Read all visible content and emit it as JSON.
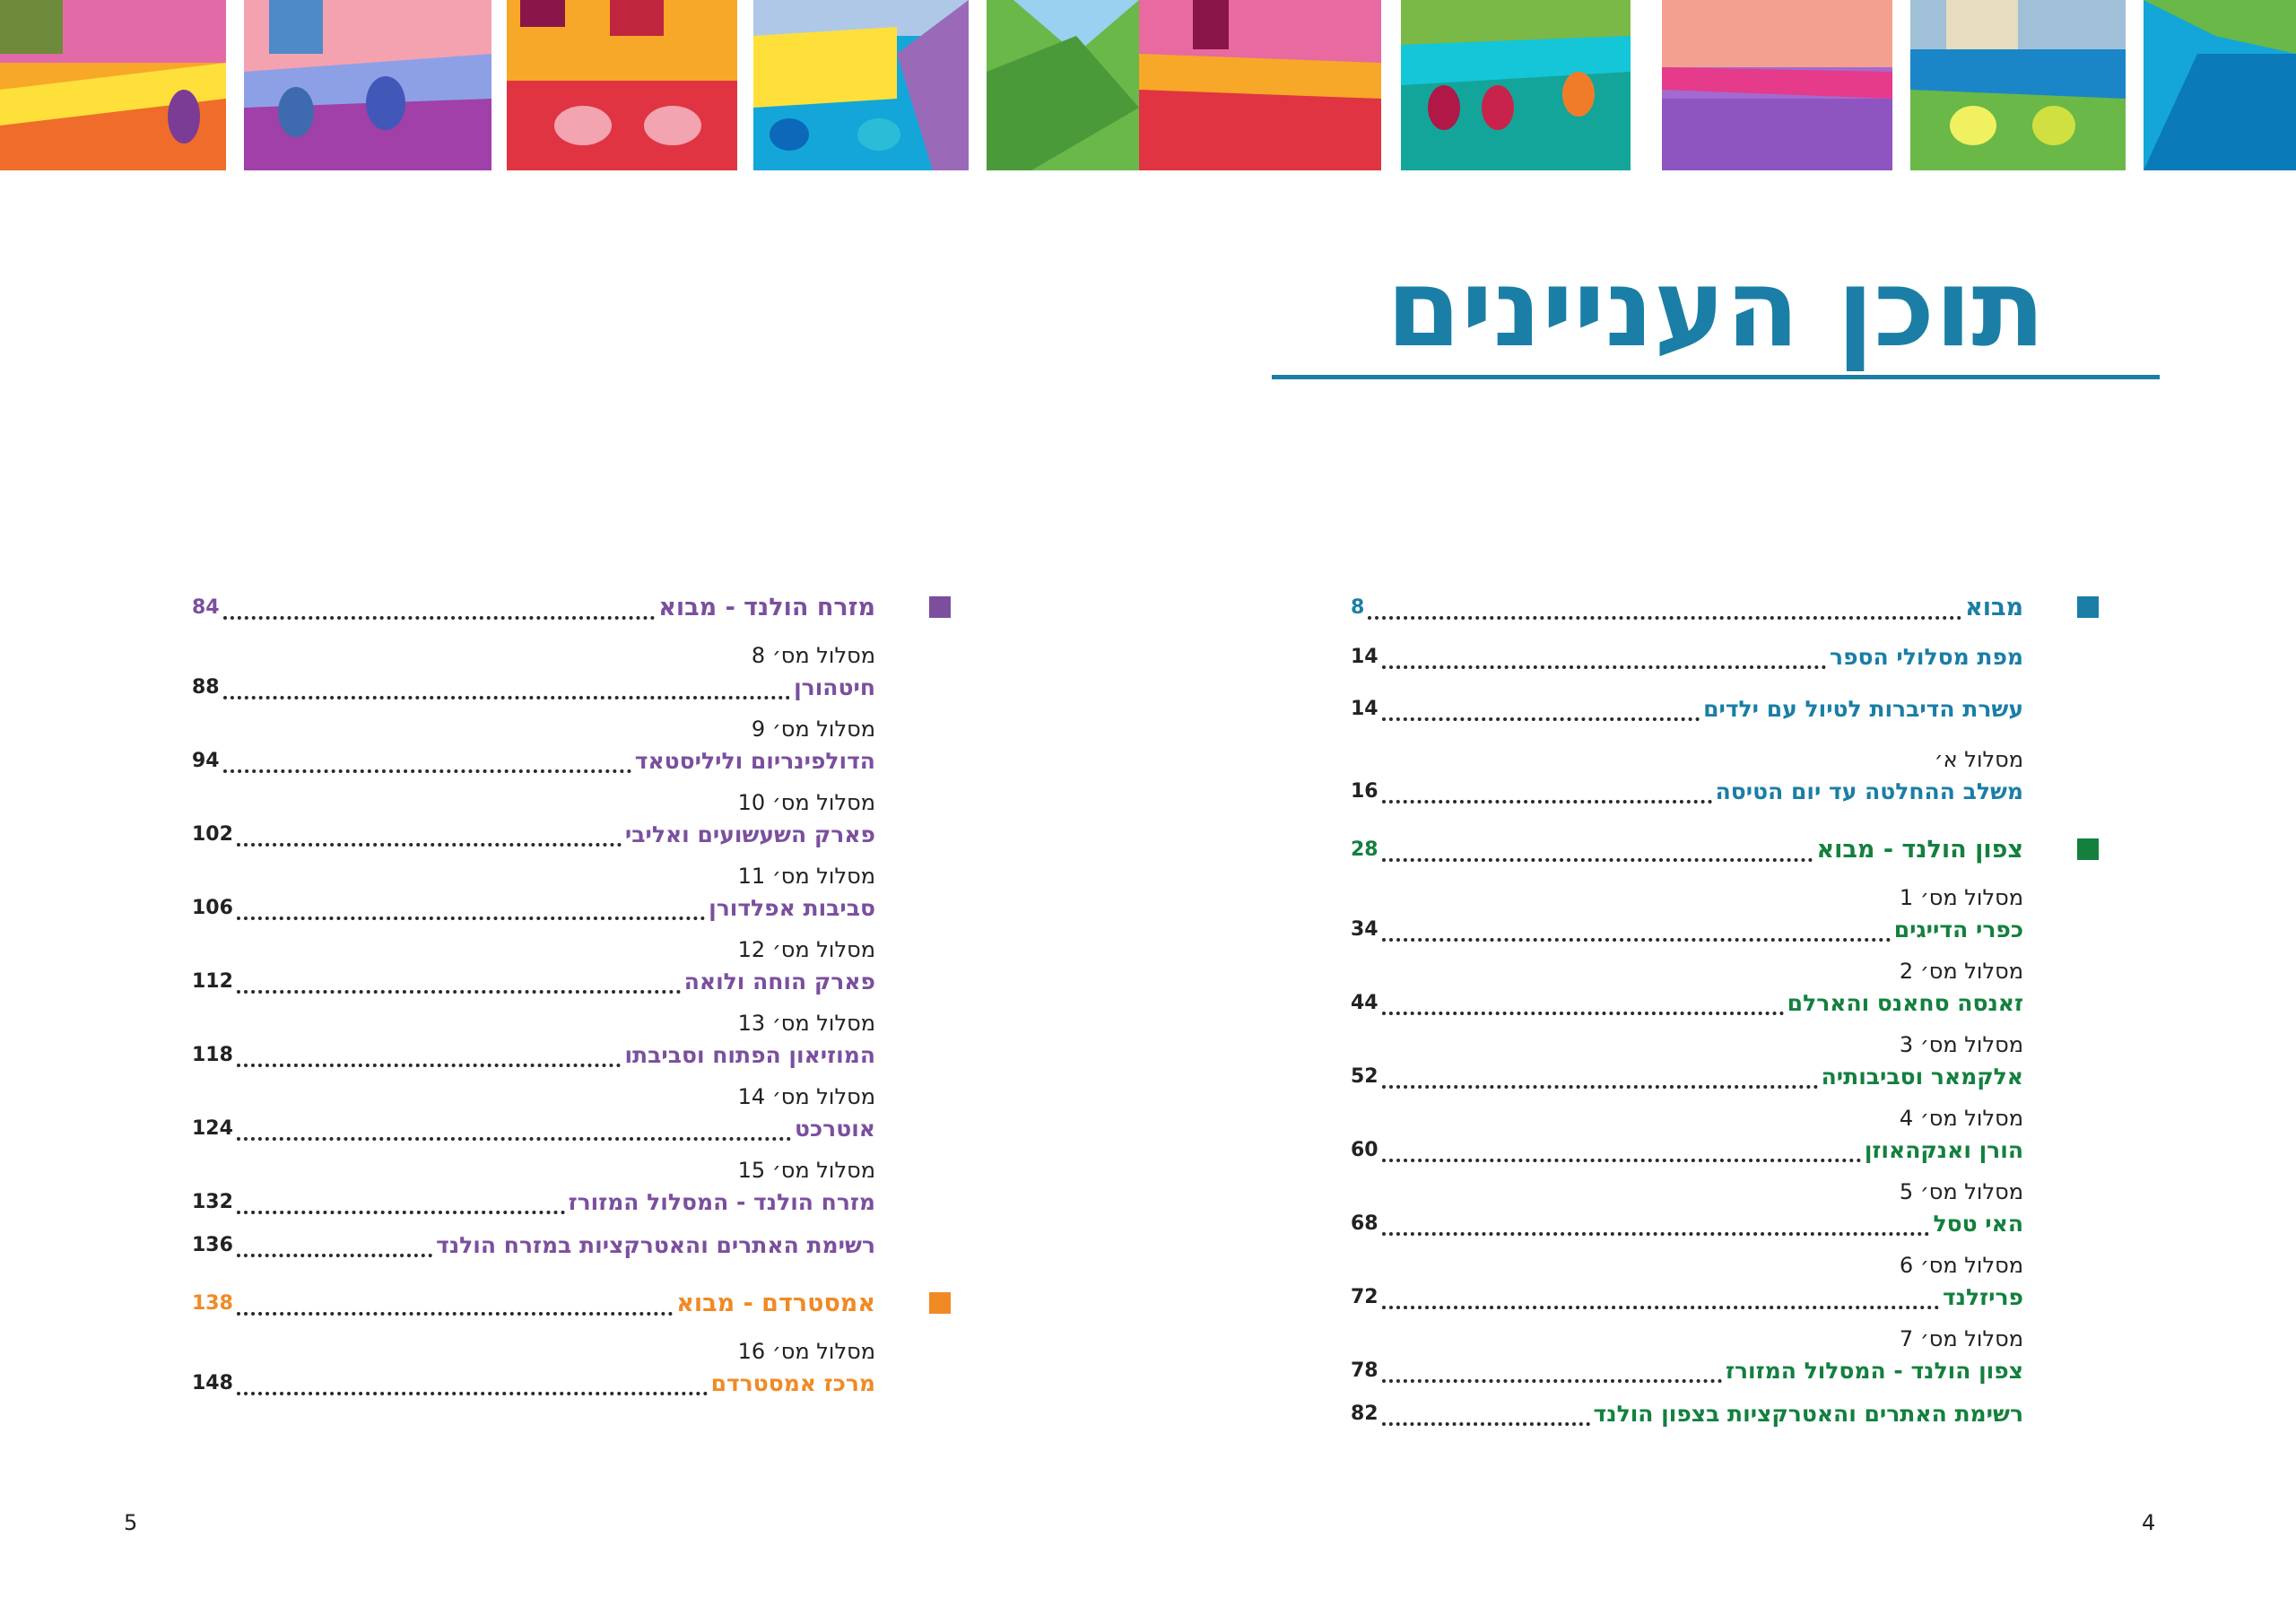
{
  "colors": {
    "blue": "#1a7ea6",
    "green": "#13803e",
    "purple": "#7b4f9e",
    "orange": "#f08a24",
    "text": "#222222"
  },
  "banner": {
    "icon": "decorative-mosaic-banner"
  },
  "title": "תוכן העניינים",
  "right_column": {
    "sections": [
      {
        "color": "blue",
        "head": {
          "label": "מבוא",
          "page": "8"
        },
        "entries": [
          {
            "route": "",
            "label": "מפת מסלולי הספר",
            "page": "14"
          },
          {
            "route": "",
            "label": "עשרת הדיברות לטיול עם ילדים",
            "page": "14"
          },
          {
            "route": "מסלול א׳",
            "label": "משלב ההחלטה עד יום הטיסה",
            "page": "16"
          }
        ]
      },
      {
        "color": "green",
        "head": {
          "label": "צפון הולנד - מבוא",
          "page": "28"
        },
        "entries": [
          {
            "route": "מסלול מס׳ 1",
            "label": "כפרי הדייגים",
            "page": "34"
          },
          {
            "route": "מסלול מס׳ 2",
            "label": "זאנסה סחאנס והארלם",
            "page": "44"
          },
          {
            "route": "מסלול מס׳ 3",
            "label": "אלקמאר וסביבותיה",
            "page": "52"
          },
          {
            "route": "מסלול מס׳ 4",
            "label": "הורן ואנקהאוזן",
            "page": "60"
          },
          {
            "route": "מסלול מס׳ 5",
            "label": "האי טסל",
            "page": "68"
          },
          {
            "route": "מסלול מס׳ 6",
            "label": "פריזלנד",
            "page": "72"
          },
          {
            "route": "מסלול מס׳ 7",
            "label": "צפון הולנד - המסלול המזורז",
            "page": "78"
          },
          {
            "route": "",
            "label": "רשימת האתרים והאטרקציות בצפון הולנד",
            "page": "82"
          }
        ]
      }
    ]
  },
  "left_column": {
    "sections": [
      {
        "color": "purple",
        "head": {
          "label": "מזרח הולנד - מבוא",
          "page": "84"
        },
        "entries": [
          {
            "route": "מסלול מס׳ 8",
            "label": "חיטהורן",
            "page": "88"
          },
          {
            "route": "מסלול מס׳ 9",
            "label": "הדולפינריום וליליסטאד",
            "page": "94"
          },
          {
            "route": "מסלול מס׳ 10",
            "label": "פארק השעשועים ואליבי",
            "page": "102"
          },
          {
            "route": "מסלול מס׳ 11",
            "label": "סביבות אפלדורן",
            "page": "106"
          },
          {
            "route": "מסלול מס׳ 12",
            "label": "פארק הוחה ולואה",
            "page": "112"
          },
          {
            "route": "מסלול מס׳ 13",
            "label": "המוזיאון הפתוח וסביבתו",
            "page": "118"
          },
          {
            "route": "מסלול מס׳ 14",
            "label": "אוטרכט",
            "page": "124"
          },
          {
            "route": "מסלול מס׳ 15",
            "label": "מזרח הולנד - המסלול המזורז",
            "page": "132"
          },
          {
            "route": "",
            "label": "רשימת האתרים והאטרקציות במזרח הולנד",
            "page": "136"
          }
        ]
      },
      {
        "color": "orange",
        "head": {
          "label": "אמסטרדם - מבוא",
          "page": "138"
        },
        "entries": [
          {
            "route": "מסלול מס׳ 16",
            "label": "מרכז אמסטרדם",
            "page": "148"
          }
        ]
      }
    ]
  },
  "page_numbers": {
    "left": "5",
    "right": "4"
  }
}
